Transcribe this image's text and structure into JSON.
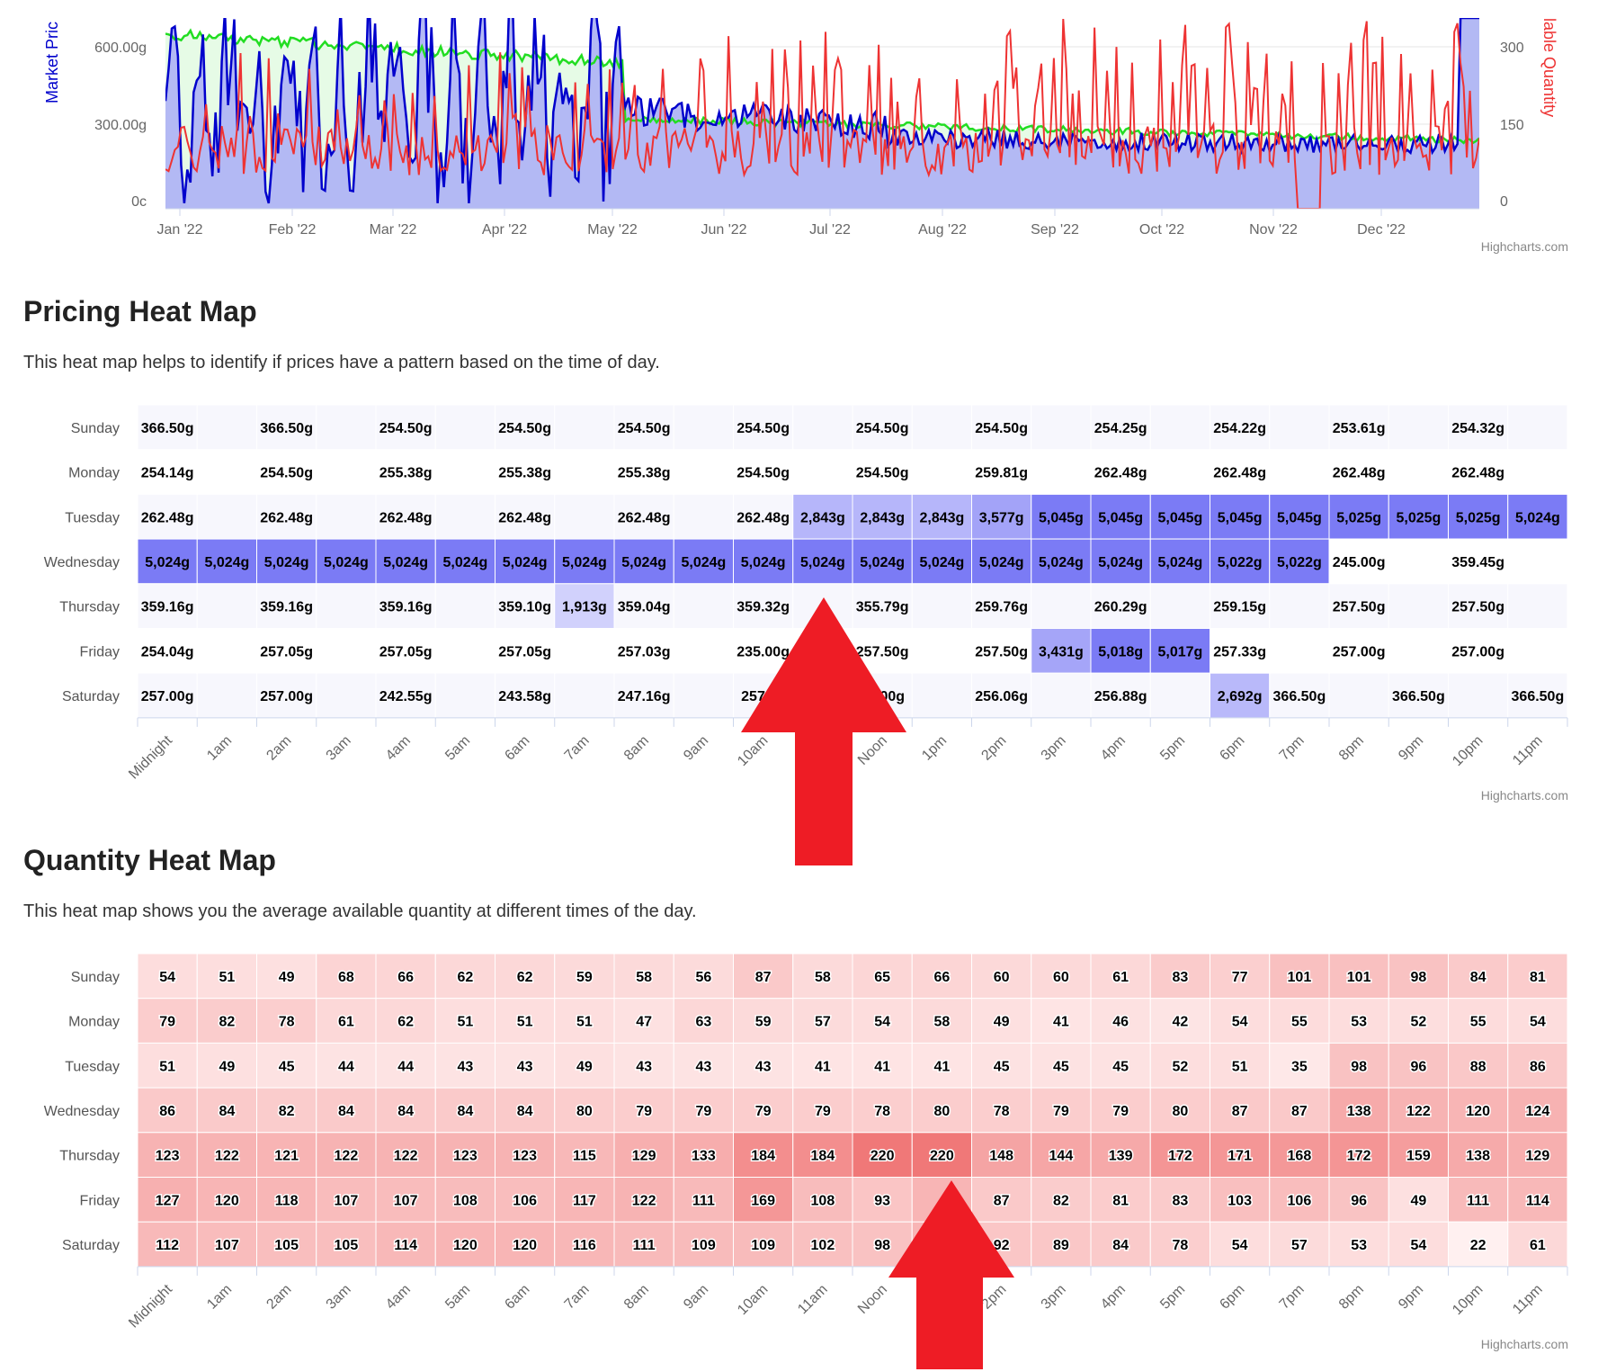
{
  "top_chart": {
    "y_left_label": "Market Pric",
    "y_right_label": "lable Quantity",
    "y_left_ticks": [
      "600.00g",
      "300.00g",
      "0c"
    ],
    "y_right_ticks": [
      "300",
      "150",
      "0"
    ],
    "x_ticks": [
      "Jan '22",
      "Feb '22",
      "Mar '22",
      "Apr '22",
      "May '22",
      "Jun '22",
      "Jul '22",
      "Aug '22",
      "Sep '22",
      "Oct '22",
      "Nov '22",
      "Dec '22"
    ],
    "credit": "Highcharts.com",
    "colors": {
      "market_price": "#0000cc",
      "area_fill": "#b3b9f4",
      "green_line": "#22dd22",
      "green_fill": "#e6fbe6",
      "quantity": "#ee3333"
    }
  },
  "pricing": {
    "title": "Pricing Heat Map",
    "description": "This heat map helps to identify if prices have a pattern based on the time of day.",
    "credit": "Highcharts.com"
  },
  "quantity": {
    "title": "Quantity Heat Map",
    "description": "This heat map shows you the average available quantity at different times of the day.",
    "credit": "Highcharts.com"
  },
  "annotations": {
    "arrow_color": "#ee1c25"
  },
  "chart_data": [
    {
      "type": "heatmap",
      "title": "Pricing Heat Map",
      "x_categories": [
        "Midnight",
        "1am",
        "2am",
        "3am",
        "4am",
        "5am",
        "6am",
        "7am",
        "8am",
        "9am",
        "10am",
        "11am",
        "Noon",
        "1pm",
        "2pm",
        "3pm",
        "4pm",
        "5pm",
        "6pm",
        "7pm",
        "8pm",
        "9pm",
        "10pm",
        "11pm"
      ],
      "y_categories": [
        "Sunday",
        "Monday",
        "Tuesday",
        "Wednesday",
        "Thursday",
        "Friday",
        "Saturday"
      ],
      "cells": [
        [
          "366.50g",
          "",
          "366.50g",
          "",
          "254.50g",
          "",
          "254.50g",
          "",
          "254.50g",
          "",
          "254.50g",
          "",
          "254.50g",
          "",
          "254.50g",
          "",
          "254.25g",
          "",
          "254.22g",
          "",
          "253.61g",
          "",
          "254.32g",
          ""
        ],
        [
          "254.14g",
          "",
          "254.50g",
          "",
          "255.38g",
          "",
          "255.38g",
          "",
          "255.38g",
          "",
          "254.50g",
          "",
          "254.50g",
          "",
          "259.81g",
          "",
          "262.48g",
          "",
          "262.48g",
          "",
          "262.48g",
          "",
          "262.48g",
          ""
        ],
        [
          "262.48g",
          "",
          "262.48g",
          "",
          "262.48g",
          "",
          "262.48g",
          "",
          "262.48g",
          "",
          "262.48g",
          "2,843g",
          "2,843g",
          "2,843g",
          "3,577g",
          "5,045g",
          "5,045g",
          "5,045g",
          "5,045g",
          "5,045g",
          "5,025g",
          "5,025g",
          "5,025g",
          "5,024g"
        ],
        [
          "5,024g",
          "5,024g",
          "5,024g",
          "5,024g",
          "5,024g",
          "5,024g",
          "5,024g",
          "5,024g",
          "5,024g",
          "5,024g",
          "5,024g",
          "5,024g",
          "5,024g",
          "5,024g",
          "5,024g",
          "5,024g",
          "5,024g",
          "5,024g",
          "5,022g",
          "5,022g",
          "245.00g",
          "",
          "359.45g",
          ""
        ],
        [
          "359.16g",
          "",
          "359.16g",
          "",
          "359.16g",
          "",
          "359.10g",
          "1,913g",
          "359.04g",
          "",
          "359.32g",
          "",
          "355.79g",
          "",
          "259.76g",
          "",
          "260.29g",
          "",
          "259.15g",
          "",
          "257.50g",
          "",
          "257.50g",
          ""
        ],
        [
          "254.04g",
          "",
          "257.05g",
          "",
          "257.05g",
          "",
          "257.05g",
          "",
          "257.03g",
          "",
          "235.00g",
          "",
          "257.50g",
          "",
          "257.50g",
          "3,431g",
          "5,018g",
          "5,017g",
          "257.33g",
          "",
          "257.00g",
          "",
          "257.00g",
          ""
        ],
        [
          "257.00g",
          "",
          "257.00g",
          "",
          "242.55g",
          "",
          "243.58g",
          "",
          "247.16g",
          "",
          "257.00",
          "",
          "57.00g",
          "",
          "256.06g",
          "",
          "256.88g",
          "",
          "2,692g",
          "366.50g",
          "",
          "366.50g",
          "",
          "366.50g"
        ]
      ],
      "cell_intensity": [
        [
          0,
          0,
          0,
          0,
          0,
          0,
          0,
          0,
          0,
          0,
          0,
          0,
          0,
          0,
          0,
          0,
          0,
          0,
          0,
          0,
          0,
          0,
          0,
          0
        ],
        [
          0,
          0,
          0,
          0,
          0,
          0,
          0,
          0,
          0,
          0,
          0,
          0,
          0,
          0,
          0,
          0,
          0,
          0,
          0,
          0,
          0,
          0,
          0,
          0
        ],
        [
          0,
          0,
          0,
          0,
          0,
          0,
          0,
          0,
          0,
          0,
          0,
          0.55,
          0.55,
          0.55,
          0.7,
          1,
          1,
          1,
          1,
          1,
          1,
          1,
          1,
          1
        ],
        [
          1,
          1,
          1,
          1,
          1,
          1,
          1,
          1,
          1,
          1,
          1,
          1,
          1,
          1,
          1,
          1,
          1,
          1,
          1,
          1,
          0,
          0,
          0,
          0
        ],
        [
          0,
          0,
          0,
          0,
          0,
          0,
          0,
          0.35,
          0,
          0,
          0,
          0,
          0,
          0,
          0,
          0,
          0,
          0,
          0,
          0,
          0,
          0,
          0,
          0
        ],
        [
          0,
          0,
          0,
          0,
          0,
          0,
          0,
          0,
          0,
          0,
          0,
          0,
          0,
          0,
          0,
          0.68,
          1,
          1,
          0,
          0,
          0,
          0,
          0,
          0
        ],
        [
          0,
          0,
          0,
          0,
          0,
          0,
          0,
          0,
          0,
          0,
          0,
          0,
          0,
          0,
          0,
          0,
          0,
          0,
          0.53,
          0,
          0,
          0,
          0,
          0
        ]
      ]
    },
    {
      "type": "heatmap",
      "title": "Quantity Heat Map",
      "x_categories": [
        "Midnight",
        "1am",
        "2am",
        "3am",
        "4am",
        "5am",
        "6am",
        "7am",
        "8am",
        "9am",
        "10am",
        "11am",
        "Noon",
        "1pm",
        "2pm",
        "3pm",
        "4pm",
        "5pm",
        "6pm",
        "7pm",
        "8pm",
        "9pm",
        "10pm",
        "11pm"
      ],
      "y_categories": [
        "Sunday",
        "Monday",
        "Tuesday",
        "Wednesday",
        "Thursday",
        "Friday",
        "Saturday"
      ],
      "values": [
        [
          54,
          51,
          49,
          68,
          66,
          62,
          62,
          59,
          58,
          56,
          87,
          58,
          65,
          66,
          60,
          60,
          61,
          83,
          77,
          101,
          101,
          98,
          84,
          81
        ],
        [
          79,
          82,
          78,
          61,
          62,
          51,
          51,
          51,
          47,
          63,
          59,
          57,
          54,
          58,
          49,
          41,
          46,
          42,
          54,
          55,
          53,
          52,
          55,
          54
        ],
        [
          51,
          49,
          45,
          44,
          44,
          43,
          43,
          49,
          43,
          43,
          43,
          41,
          41,
          41,
          45,
          45,
          45,
          52,
          51,
          35,
          98,
          96,
          88,
          86
        ],
        [
          86,
          84,
          82,
          84,
          84,
          84,
          84,
          80,
          79,
          79,
          79,
          79,
          78,
          80,
          78,
          79,
          79,
          80,
          87,
          87,
          138,
          122,
          120,
          124
        ],
        [
          123,
          122,
          121,
          122,
          122,
          123,
          123,
          115,
          129,
          133,
          184,
          184,
          220,
          220,
          148,
          144,
          139,
          172,
          171,
          168,
          172,
          159,
          138,
          129
        ],
        [
          127,
          120,
          118,
          107,
          107,
          108,
          106,
          117,
          122,
          111,
          169,
          108,
          93,
          null,
          87,
          82,
          81,
          83,
          103,
          106,
          96,
          49,
          111,
          114
        ],
        [
          112,
          107,
          105,
          105,
          114,
          120,
          120,
          116,
          111,
          109,
          109,
          102,
          98,
          null,
          92,
          89,
          84,
          78,
          54,
          57,
          53,
          54,
          22,
          61
        ]
      ],
      "labels": [
        [
          "54",
          "51",
          "49",
          "68",
          "66",
          "62",
          "62",
          "59",
          "58",
          "56",
          "87",
          "58",
          "65",
          "66",
          "60",
          "60",
          "61",
          "83",
          "77",
          "101",
          "101",
          "98",
          "84",
          "81"
        ],
        [
          "79",
          "82",
          "78",
          "61",
          "62",
          "51",
          "51",
          "51",
          "47",
          "63",
          "59",
          "57",
          "54",
          "58",
          "49",
          "41",
          "46",
          "42",
          "54",
          "55",
          "53",
          "52",
          "55",
          "54"
        ],
        [
          "51",
          "49",
          "45",
          "44",
          "44",
          "43",
          "43",
          "49",
          "43",
          "43",
          "43",
          "41",
          "41",
          "41",
          "45",
          "45",
          "45",
          "52",
          "51",
          "35",
          "98",
          "96",
          "88",
          "86"
        ],
        [
          "86",
          "84",
          "82",
          "84",
          "84",
          "84",
          "84",
          "80",
          "79",
          "79",
          "79",
          "79",
          "78",
          "80",
          "78",
          "79",
          "79",
          "80",
          "87",
          "87",
          "138",
          "122",
          "120",
          "124"
        ],
        [
          "123",
          "122",
          "121",
          "122",
          "122",
          "123",
          "123",
          "115",
          "129",
          "133",
          "184",
          "184",
          "220",
          "220",
          "148",
          "144",
          "139",
          "172",
          "171",
          "168",
          "172",
          "159",
          "138",
          "129"
        ],
        [
          "127",
          "120",
          "118",
          "107",
          "107",
          "108",
          "106",
          "117",
          "122",
          "111",
          "169",
          "108",
          "93",
          "",
          "87",
          "82",
          "81",
          "83",
          "103",
          "106",
          "96",
          "49",
          "111",
          "114"
        ],
        [
          "112",
          "107",
          "105",
          "105",
          "114",
          "120",
          "120",
          "116",
          "111",
          "109",
          "109",
          "102",
          "98",
          "",
          "92",
          "89",
          "84",
          "78",
          "54",
          "57",
          "53",
          "54",
          "22",
          "61"
        ]
      ],
      "min": 22,
      "max": 220
    }
  ]
}
